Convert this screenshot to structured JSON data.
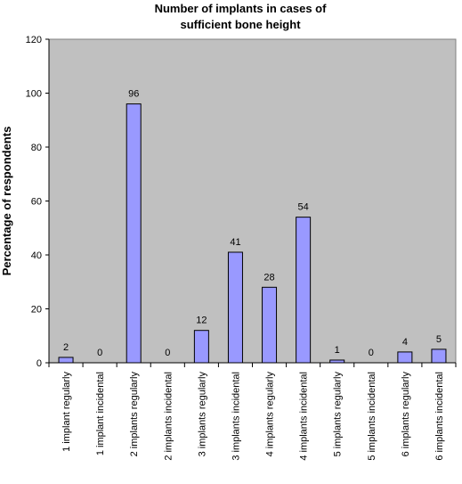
{
  "chart_data": {
    "type": "bar",
    "title_lines": [
      "Number of implants in cases of",
      "sufficient bone height"
    ],
    "xlabel": "",
    "ylabel": "Percentage of respondents",
    "ylim": [
      0,
      120
    ],
    "yticks": [
      0,
      20,
      40,
      60,
      80,
      100,
      120
    ],
    "grid": false,
    "categories": [
      "1 implant regularly",
      "1 implant incidental",
      "2 implants regularly",
      "2 implants incidental",
      "3 implants regularly",
      "3 implants incidental",
      "4 implants regularly",
      "4 implants incidental",
      "5 implants regularly",
      "5 implants incidental",
      "6 implants regularly",
      "6 implants incidental"
    ],
    "values": [
      2,
      0,
      96,
      0,
      12,
      41,
      28,
      54,
      1,
      0,
      4,
      5
    ],
    "data_labels": [
      "2",
      "0",
      "96",
      "0",
      "12",
      "41",
      "28",
      "54",
      "1",
      "0",
      "4",
      "5"
    ],
    "colors": {
      "plot_bg": "#c0c0c0",
      "bar_fill": "#9999ff",
      "bar_stroke": "#000000"
    }
  }
}
